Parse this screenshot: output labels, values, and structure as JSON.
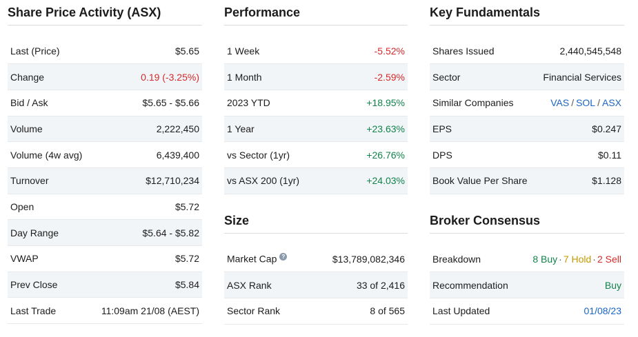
{
  "share_price": {
    "title": "Share Price Activity (ASX)",
    "rows": [
      {
        "label": "Last (Price)",
        "value": "$5.65"
      },
      {
        "label": "Change",
        "value": "0.19 (-3.25%)"
      },
      {
        "label": "Bid / Ask",
        "value": "$5.65 - $5.66"
      },
      {
        "label": "Volume",
        "value": "2,222,450"
      },
      {
        "label": "Volume (4w avg)",
        "value": "6,439,400"
      },
      {
        "label": "Turnover",
        "value": "$12,710,234"
      },
      {
        "label": "Open",
        "value": "$5.72"
      },
      {
        "label": "Day Range",
        "value": "$5.64 - $5.82"
      },
      {
        "label": "VWAP",
        "value": "$5.72"
      },
      {
        "label": "Prev Close",
        "value": "$5.84"
      },
      {
        "label": "Last Trade",
        "value": "11:09am 21/08 (AEST)"
      }
    ]
  },
  "performance": {
    "title": "Performance",
    "rows": [
      {
        "label": "1 Week",
        "value": "-5.52%"
      },
      {
        "label": "1 Month",
        "value": "-2.59%"
      },
      {
        "label": "2023 YTD",
        "value": "+18.95%"
      },
      {
        "label": "1 Year",
        "value": "+23.63%"
      },
      {
        "label": "vs Sector (1yr)",
        "value": "+26.76%"
      },
      {
        "label": "vs ASX 200 (1yr)",
        "value": "+24.03%"
      }
    ]
  },
  "size": {
    "title": "Size",
    "help_glyph": "?",
    "rows": [
      {
        "label": "Market Cap",
        "value": "$13,789,082,346"
      },
      {
        "label": "ASX Rank",
        "value": "33 of 2,416"
      },
      {
        "label": "Sector Rank",
        "value": "8 of 565"
      }
    ]
  },
  "fundamentals": {
    "title": "Key Fundamentals",
    "shares_issued": {
      "label": "Shares Issued",
      "value": "2,440,545,548"
    },
    "sector": {
      "label": "Sector",
      "value": "Financial Services"
    },
    "similar": {
      "label": "Similar Companies",
      "links": [
        "VAS",
        "SOL",
        "ASX"
      ],
      "separator": "/"
    },
    "eps": {
      "label": "EPS",
      "value": "$0.247"
    },
    "dps": {
      "label": "DPS",
      "value": "$0.11"
    },
    "bvps": {
      "label": "Book Value Per Share",
      "value": "$1.128"
    }
  },
  "broker": {
    "title": "Broker Consensus",
    "breakdown": {
      "label": "Breakdown",
      "buy": "8 Buy",
      "hold": "7 Hold",
      "sell": "2 Sell",
      "dot": "·"
    },
    "recommendation": {
      "label": "Recommendation",
      "value": "Buy"
    },
    "last_updated": {
      "label": "Last Updated",
      "value": "01/08/23"
    }
  },
  "colors": {
    "negative": "#d42a2a",
    "positive": "#11824a",
    "link": "#1a66c4",
    "hold": "#c79a00",
    "row_alt": "#f2f5f8"
  }
}
